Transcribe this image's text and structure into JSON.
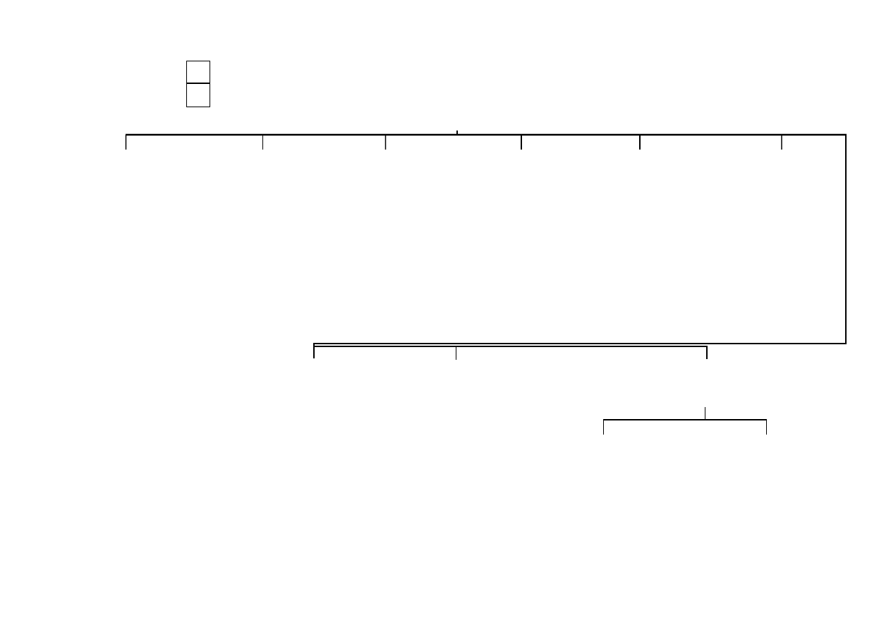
{
  "diagram": {
    "type": "tree-connectors",
    "line_color": "#000000",
    "background": "#ffffff",
    "labels": []
  }
}
